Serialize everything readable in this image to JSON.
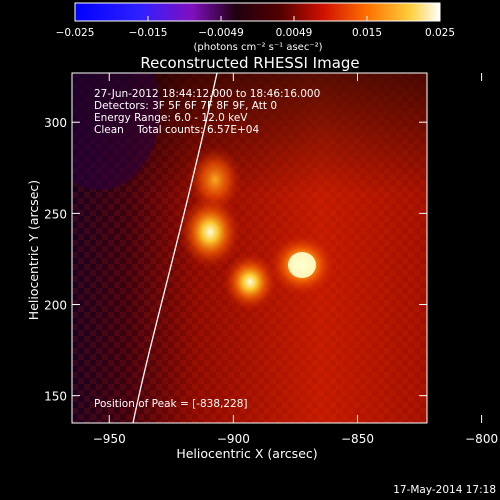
{
  "colorbar": {
    "ticks": [
      "−0.025",
      "−0.015",
      "−0.0049",
      "0.0049",
      "0.015",
      "0.025"
    ],
    "units": "(photons cm⁻² s⁻¹ asec⁻²)"
  },
  "title": "Reconstructed RHESSI Image",
  "info": {
    "time_range": "27-Jun-2012 18:44:12.000 to 18:46:16.000",
    "detectors": "Detectors: 3F 5F 6F 7F 8F 9F, Att 0",
    "energy_range": "Energy Range: 6.0 - 12.0 keV",
    "method_counts": "Clean    Total counts: 6.57E+04"
  },
  "peak": "Position of Peak = [-838,228]",
  "axes": {
    "x_label": "Heliocentric X (arcsec)",
    "y_label": "Heliocentric Y (arcsec)",
    "x_ticks": [
      {
        "value": -950,
        "label": "−950"
      },
      {
        "value": -900,
        "label": "−900"
      },
      {
        "value": -850,
        "label": "−850"
      },
      {
        "value": -800,
        "label": "−800"
      }
    ],
    "y_ticks": [
      {
        "value": 300,
        "label": "300"
      },
      {
        "value": 250,
        "label": "250"
      },
      {
        "value": 200,
        "label": "200"
      },
      {
        "value": 150,
        "label": "150"
      }
    ],
    "x_range": [
      -965,
      -822
    ],
    "y_range": [
      135,
      327
    ]
  },
  "footer_timestamp": "17-May-2014 17:18",
  "colors": {
    "background": "#000000",
    "text": "#ffffff"
  }
}
